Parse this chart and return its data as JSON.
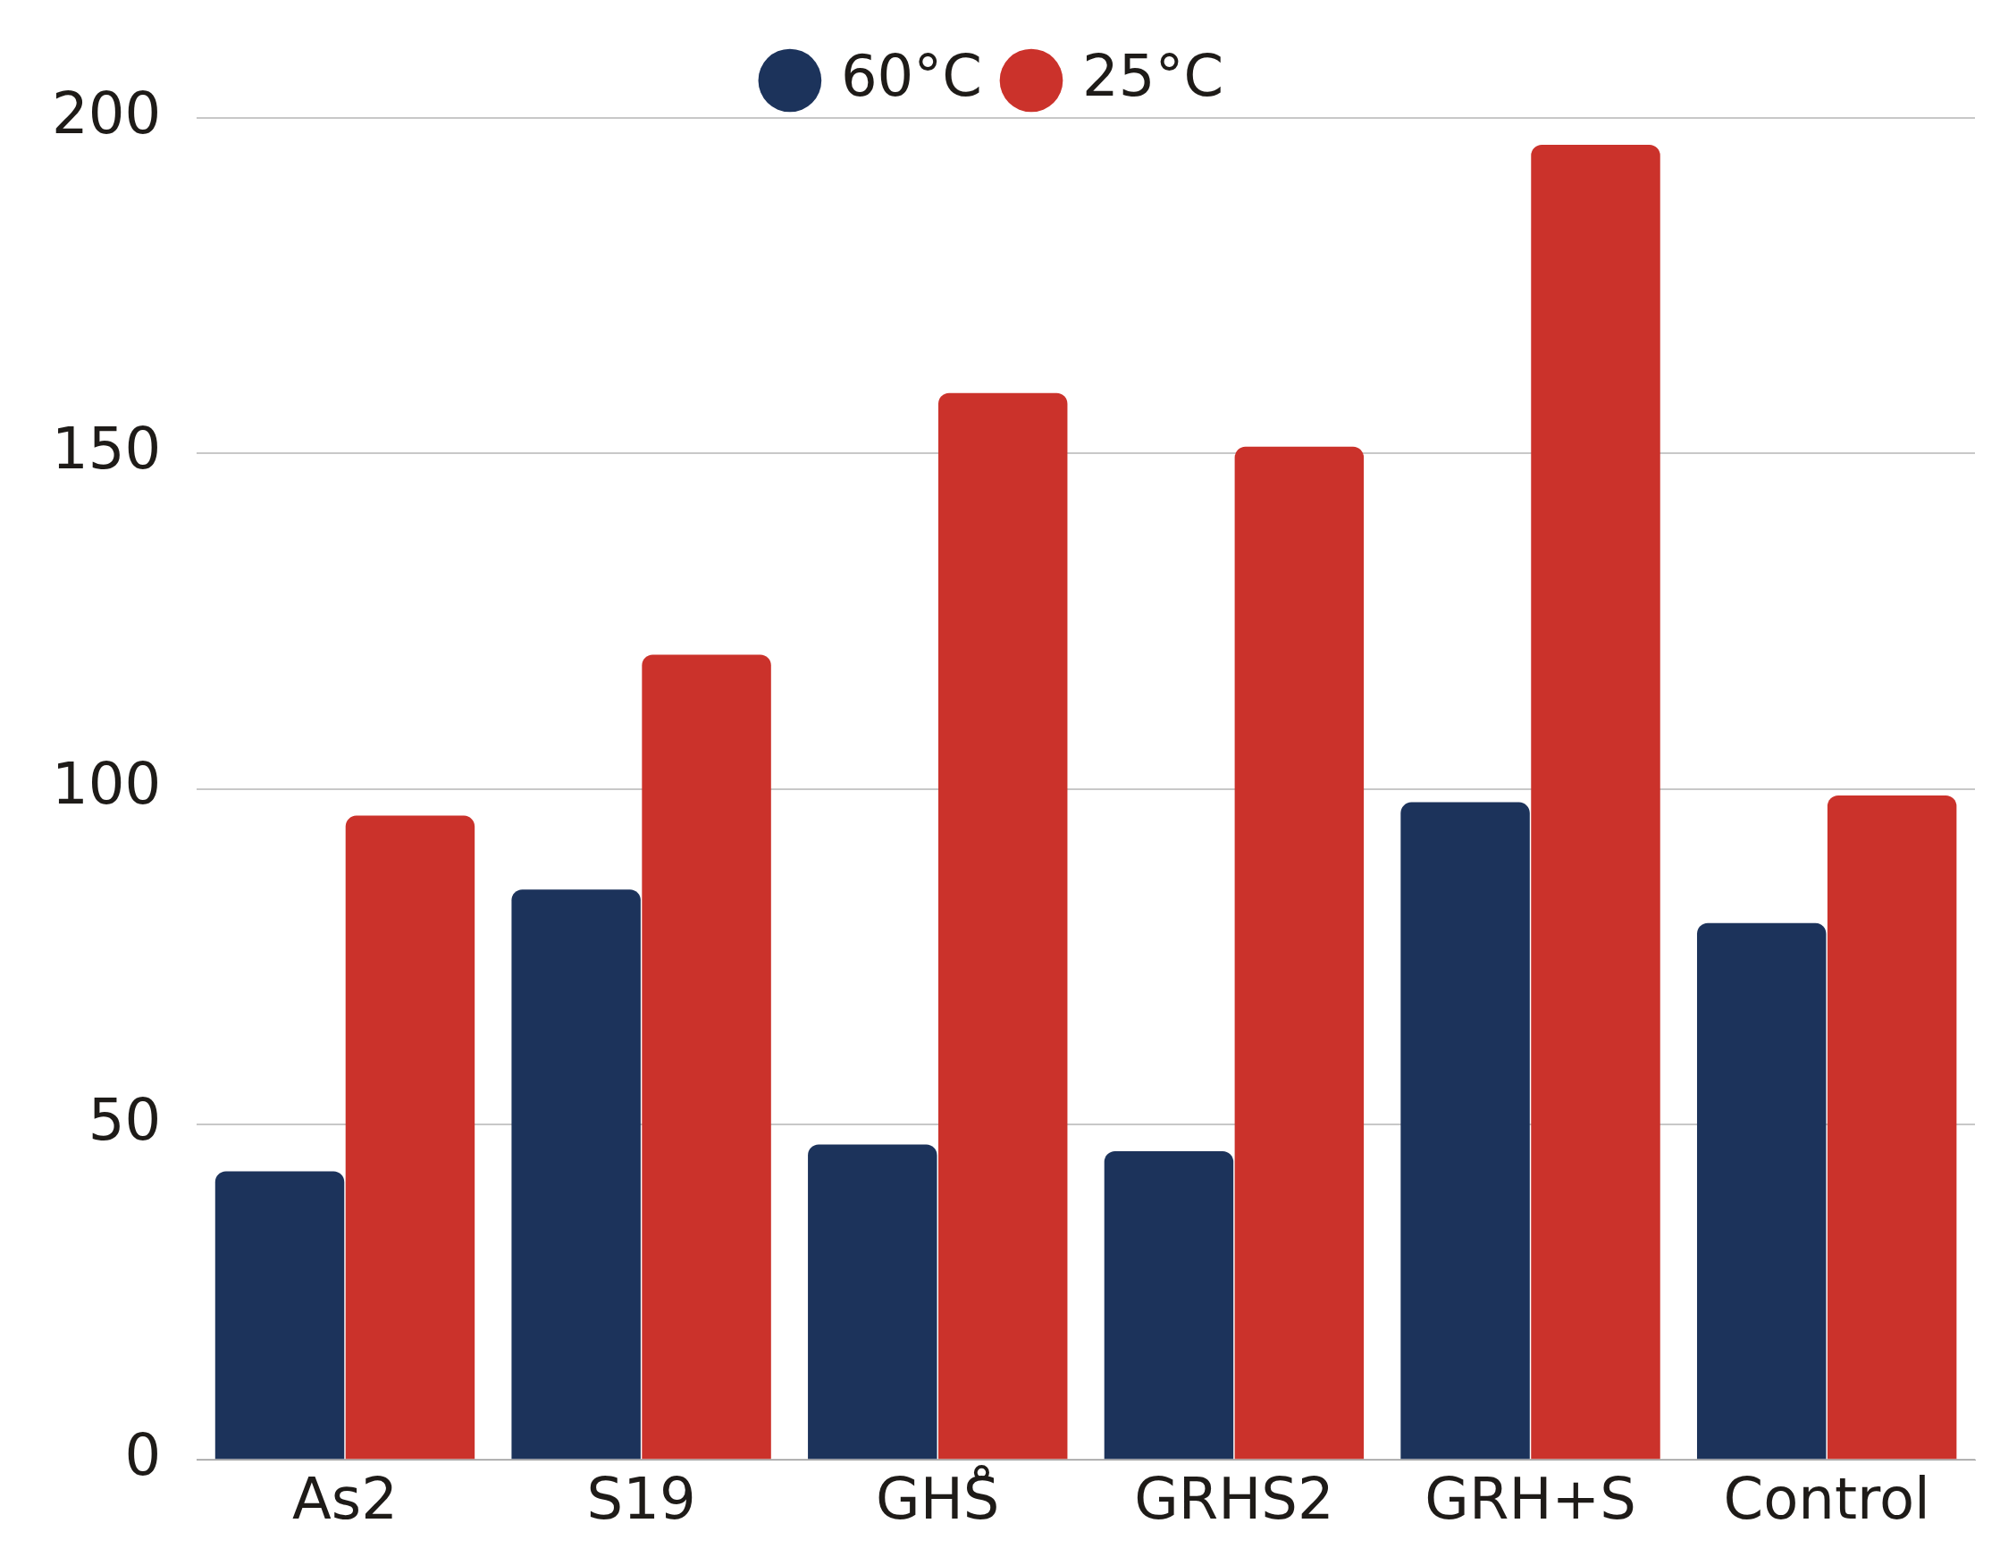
{
  "chart_data": {
    "type": "bar",
    "categories": [
      "As2",
      "S19",
      "GHS̊",
      "GRHS2",
      "GRH+S",
      "Control"
    ],
    "series": [
      {
        "name": "60°C",
        "color": "#1c335b",
        "values": [
          43,
          85,
          47,
          46,
          98,
          80
        ]
      },
      {
        "name": "25°C",
        "color": "#cb322b",
        "values": [
          96,
          120,
          159,
          151,
          196,
          99
        ]
      }
    ],
    "ylim": [
      0,
      200
    ],
    "yticks": [
      0,
      50,
      100,
      150,
      200
    ],
    "grid": "y",
    "legend": "top"
  }
}
